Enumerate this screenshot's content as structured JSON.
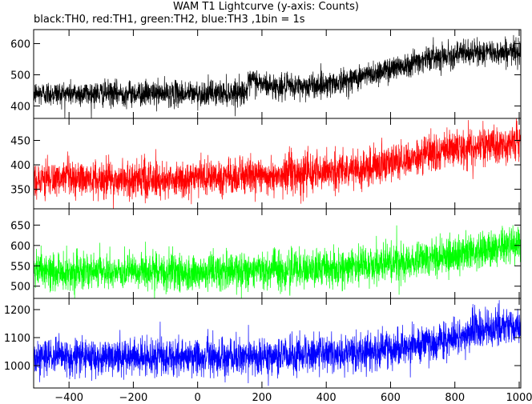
{
  "chart_data": {
    "type": "line",
    "title": "WAM T1 Lightcurve (y-axis: Counts)",
    "subtitle": "black:TH0, red:TH1, green:TH2, blue:TH3 ,1bin = 1s",
    "xlabel": "",
    "xlim": [
      -510,
      1005
    ],
    "x_ticks": [
      -400,
      -200,
      0,
      200,
      400,
      600,
      800,
      1000
    ],
    "x_tick_labels": [
      "−400",
      "−200",
      "0",
      "200",
      "400",
      "600",
      "800",
      "1000"
    ],
    "grid": false,
    "series": [
      {
        "name": "TH0",
        "color": "#000000",
        "ylim": [
          360,
          645
        ],
        "y_ticks": [
          400,
          500,
          600
        ],
        "x": [
          -510,
          -400,
          -300,
          -200,
          -100,
          0,
          100,
          150,
          170,
          200,
          250,
          300,
          350,
          400,
          450,
          500,
          550,
          600,
          650,
          700,
          750,
          800,
          850,
          900,
          950,
          1000
        ],
        "values": [
          440,
          440,
          440,
          440,
          440,
          440,
          443,
          447,
          485,
          470,
          460,
          462,
          465,
          470,
          478,
          492,
          505,
          520,
          535,
          550,
          560,
          565,
          570,
          572,
          573,
          575
        ],
        "noise_amplitude": 40
      },
      {
        "name": "TH1",
        "color": "#ff0000",
        "ylim": [
          310,
          495
        ],
        "y_ticks": [
          350,
          400,
          450
        ],
        "x": [
          -510,
          -400,
          -300,
          -200,
          -100,
          0,
          100,
          200,
          300,
          400,
          500,
          550,
          600,
          650,
          700,
          750,
          800,
          850,
          900,
          950,
          1000
        ],
        "values": [
          370,
          370,
          370,
          370,
          370,
          372,
          374,
          377,
          381,
          386,
          392,
          397,
          403,
          410,
          418,
          426,
          433,
          438,
          440,
          441,
          442
        ],
        "noise_amplitude": 38
      },
      {
        "name": "TH2",
        "color": "#00ff00",
        "ylim": [
          470,
          690
        ],
        "y_ticks": [
          500,
          550,
          600,
          650
        ],
        "x": [
          -510,
          -400,
          -300,
          -200,
          -100,
          0,
          100,
          200,
          300,
          400,
          500,
          600,
          700,
          800,
          900,
          950,
          1000
        ],
        "values": [
          535,
          535,
          535,
          535,
          535,
          535,
          536,
          537,
          539,
          542,
          547,
          555,
          565,
          578,
          592,
          598,
          603
        ],
        "noise_amplitude": 45
      },
      {
        "name": "TH3",
        "color": "#0000ff",
        "ylim": [
          920,
          1240
        ],
        "y_ticks": [
          1000,
          1100,
          1200
        ],
        "x": [
          -510,
          -400,
          -300,
          -200,
          -100,
          0,
          100,
          200,
          300,
          400,
          500,
          600,
          650,
          700,
          750,
          800,
          850,
          900,
          950,
          1000
        ],
        "values": [
          1030,
          1030,
          1030,
          1030,
          1030,
          1030,
          1031,
          1033,
          1036,
          1041,
          1048,
          1058,
          1066,
          1076,
          1088,
          1102,
          1118,
          1130,
          1138,
          1142
        ],
        "noise_amplitude": 65
      }
    ]
  }
}
